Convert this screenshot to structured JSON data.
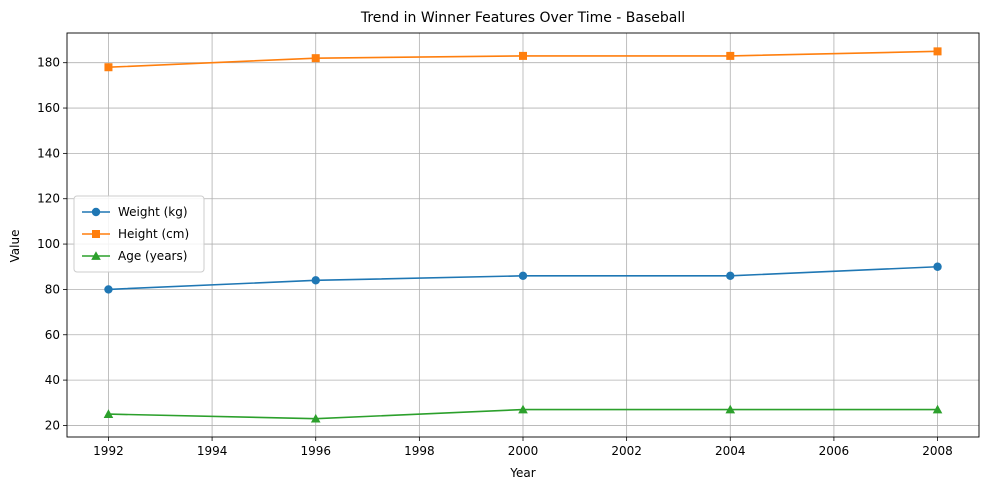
{
  "chart_data": {
    "type": "line",
    "title": "Trend in Winner Features Over Time - Baseball",
    "xlabel": "Year",
    "ylabel": "Value",
    "x": [
      1992,
      1996,
      2000,
      2004,
      2008
    ],
    "xlim": [
      1991.2,
      2008.8
    ],
    "ylim": [
      14.9,
      193.1
    ],
    "xticks": [
      1992,
      1994,
      1996,
      1998,
      2000,
      2002,
      2004,
      2006,
      2008
    ],
    "yticks": [
      20,
      40,
      60,
      80,
      100,
      120,
      140,
      160,
      180
    ],
    "grid": true,
    "legend_position": "center-left",
    "series": [
      {
        "name": "Weight (kg)",
        "color": "#1f77b4",
        "marker": "circle",
        "values": [
          80,
          84,
          86,
          86,
          90
        ]
      },
      {
        "name": "Height (cm)",
        "color": "#ff7f0e",
        "marker": "square",
        "values": [
          178,
          182,
          183,
          183,
          185
        ]
      },
      {
        "name": "Age (years)",
        "color": "#2ca02c",
        "marker": "triangle",
        "values": [
          25,
          23,
          27,
          27,
          27
        ]
      }
    ]
  }
}
